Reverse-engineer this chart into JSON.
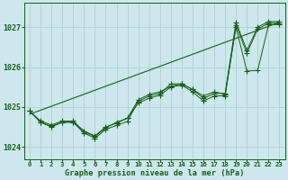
{
  "bg_color": "#cce8ec",
  "grid_color": "#aaccd0",
  "line_color": "#1a5c1a",
  "marker_color": "#1a5c1a",
  "xlabel": "Graphe pression niveau de la mer (hPa)",
  "xlim": [
    -0.5,
    23.5
  ],
  "ylim": [
    1023.7,
    1027.6
  ],
  "yticks": [
    1024,
    1025,
    1026,
    1027
  ],
  "xticks": [
    0,
    1,
    2,
    3,
    4,
    5,
    6,
    7,
    8,
    9,
    10,
    11,
    12,
    13,
    14,
    15,
    16,
    17,
    18,
    19,
    20,
    21,
    22,
    23
  ],
  "series1": [
    1024.9,
    1024.65,
    1024.55,
    1024.65,
    1024.65,
    1024.4,
    1024.28,
    1024.5,
    1024.6,
    1024.72,
    1025.1,
    1025.22,
    1025.3,
    1025.5,
    1025.55,
    1025.38,
    1025.15,
    1025.28,
    1025.28,
    1027.05,
    1026.35,
    1026.95,
    1027.1,
    1027.1
  ],
  "series2": [
    1024.9,
    1024.62,
    1024.5,
    1024.62,
    1024.62,
    1024.35,
    1024.22,
    1024.44,
    1024.54,
    1024.64,
    1025.14,
    1025.28,
    1025.34,
    1025.58,
    1025.58,
    1025.44,
    1025.22,
    1025.34,
    1025.34,
    1027.12,
    1026.42,
    1027.0,
    1027.14,
    1027.14
  ],
  "series3": [
    1024.9,
    1024.62,
    1024.52,
    1024.62,
    1024.62,
    1024.38,
    1024.26,
    1024.48,
    1024.62,
    1024.72,
    1025.18,
    1025.32,
    1025.38,
    1025.52,
    1025.58,
    1025.44,
    1025.28,
    1025.38,
    1025.32,
    1027.0,
    1025.9,
    1025.92,
    1027.06,
    1027.06
  ],
  "trend_x": [
    0,
    23
  ],
  "trend_y": [
    1024.82,
    1027.12
  ]
}
